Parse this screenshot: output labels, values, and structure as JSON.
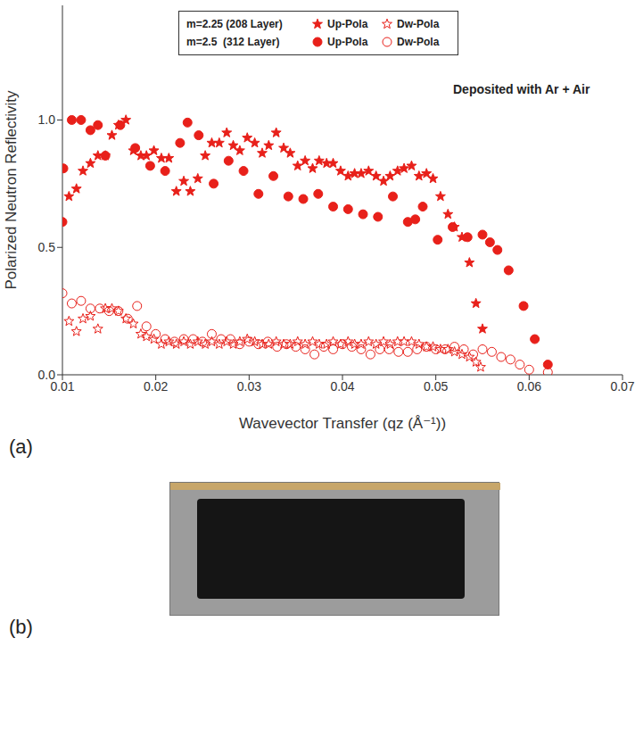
{
  "chart_data": {
    "type": "scatter",
    "panel_label": "(a)",
    "annotation": "Deposited with Ar + Air",
    "x_label": "Wavevector Transfer (qz (Å⁻¹))",
    "y_label": "Polarized Neutron Reflectivity",
    "xlim": [
      0.01,
      0.07
    ],
    "xticks": [
      0.01,
      0.02,
      0.03,
      0.04,
      0.05,
      0.06,
      0.07
    ],
    "ylim": [
      0,
      1.45
    ],
    "yticks": [
      {
        "value": 0,
        "label": "0.0"
      },
      {
        "value": 0.5,
        "label": "0.5"
      },
      {
        "value": 1,
        "label": "1.0"
      }
    ],
    "grid": false,
    "legend": "top",
    "series": [
      {
        "group": "m=2.25 (208 Layer)",
        "name": "Up-Pola",
        "color": "#e8201a",
        "marker": "filled_star",
        "x": [
          0.0107,
          0.0115,
          0.0122,
          0.013,
          0.0138,
          0.0146,
          0.0153,
          0.016,
          0.0168,
          0.0176,
          0.0184,
          0.019,
          0.0198,
          0.0206,
          0.0214,
          0.0222,
          0.023,
          0.0237,
          0.0245,
          0.0253,
          0.026,
          0.0268,
          0.0276,
          0.0283,
          0.029,
          0.0298,
          0.0306,
          0.0314,
          0.0321,
          0.0329,
          0.0337,
          0.0344,
          0.0352,
          0.036,
          0.0368,
          0.0375,
          0.0383,
          0.039,
          0.0398,
          0.0406,
          0.0413,
          0.042,
          0.0428,
          0.0436,
          0.0444,
          0.0451,
          0.0459,
          0.0466,
          0.0474,
          0.0482,
          0.049,
          0.0497,
          0.0505,
          0.0513,
          0.052,
          0.0528,
          0.0536,
          0.0543,
          0.055
        ],
        "values": [
          0.7,
          0.73,
          0.8,
          0.83,
          0.86,
          0.86,
          0.94,
          0.98,
          1.0,
          0.88,
          0.86,
          0.86,
          0.88,
          0.85,
          0.85,
          0.72,
          0.76,
          0.72,
          0.77,
          0.86,
          0.91,
          0.91,
          0.95,
          0.9,
          0.88,
          0.93,
          0.91,
          0.87,
          0.9,
          0.95,
          0.89,
          0.87,
          0.82,
          0.84,
          0.81,
          0.84,
          0.83,
          0.83,
          0.8,
          0.78,
          0.79,
          0.79,
          0.8,
          0.78,
          0.76,
          0.78,
          0.8,
          0.81,
          0.82,
          0.78,
          0.79,
          0.77,
          0.7,
          0.63,
          0.58,
          0.54,
          0.44,
          0.28,
          0.18
        ]
      },
      {
        "group": "m=2.25 (208 Layer)",
        "name": "Dw-Pola",
        "color": "#e8201a",
        "marker": "open_star",
        "x": [
          0.0107,
          0.0115,
          0.0122,
          0.013,
          0.0138,
          0.0146,
          0.0153,
          0.016,
          0.0168,
          0.0176,
          0.0184,
          0.019,
          0.0198,
          0.0206,
          0.0214,
          0.0222,
          0.023,
          0.0237,
          0.0245,
          0.0253,
          0.026,
          0.0268,
          0.0276,
          0.0283,
          0.029,
          0.0298,
          0.0306,
          0.0314,
          0.0321,
          0.0329,
          0.0337,
          0.0344,
          0.0352,
          0.036,
          0.0368,
          0.0375,
          0.0383,
          0.039,
          0.0398,
          0.0406,
          0.0413,
          0.042,
          0.0428,
          0.0436,
          0.0444,
          0.0451,
          0.0459,
          0.0466,
          0.0474,
          0.0482,
          0.049,
          0.0497,
          0.0505,
          0.0513,
          0.052,
          0.0528,
          0.0536,
          0.0543,
          0.0548
        ],
        "values": [
          0.21,
          0.17,
          0.22,
          0.23,
          0.18,
          0.26,
          0.26,
          0.25,
          0.22,
          0.2,
          0.16,
          0.15,
          0.14,
          0.12,
          0.13,
          0.12,
          0.13,
          0.12,
          0.13,
          0.12,
          0.13,
          0.12,
          0.13,
          0.12,
          0.13,
          0.14,
          0.13,
          0.12,
          0.12,
          0.13,
          0.12,
          0.12,
          0.13,
          0.12,
          0.13,
          0.12,
          0.12,
          0.13,
          0.12,
          0.13,
          0.12,
          0.12,
          0.13,
          0.12,
          0.13,
          0.12,
          0.13,
          0.13,
          0.13,
          0.12,
          0.11,
          0.11,
          0.1,
          0.1,
          0.09,
          0.08,
          0.07,
          0.05,
          0.03
        ]
      },
      {
        "group": "m=2.5  (312 Layer)",
        "name": "Up-Pola",
        "color": "#e8201a",
        "marker": "filled_circle",
        "x": [
          0.01,
          0.0101,
          0.011,
          0.012,
          0.013,
          0.0138,
          0.0146,
          0.0162,
          0.0178,
          0.0194,
          0.021,
          0.0226,
          0.0234,
          0.0246,
          0.0262,
          0.0278,
          0.0294,
          0.031,
          0.0326,
          0.0342,
          0.0358,
          0.0374,
          0.039,
          0.0406,
          0.0422,
          0.0438,
          0.0454,
          0.047,
          0.0478,
          0.0486,
          0.0502,
          0.0518,
          0.0534,
          0.055,
          0.0558,
          0.0566,
          0.0578,
          0.0594,
          0.0606,
          0.062
        ],
        "values": [
          0.6,
          0.81,
          1.0,
          1.0,
          0.96,
          0.98,
          0.86,
          0.98,
          0.89,
          0.82,
          0.8,
          0.91,
          0.99,
          0.94,
          0.75,
          0.84,
          0.8,
          0.71,
          0.78,
          0.7,
          0.69,
          0.71,
          0.66,
          0.65,
          0.63,
          0.62,
          0.7,
          0.6,
          0.61,
          0.66,
          0.53,
          0.58,
          0.54,
          0.55,
          0.52,
          0.49,
          0.41,
          0.27,
          0.14,
          0.04
        ]
      },
      {
        "group": "m=2.5  (312 Layer)",
        "name": "Dw-Pola",
        "color": "#e8201a",
        "marker": "open_circle",
        "x": [
          0.01,
          0.011,
          0.012,
          0.013,
          0.014,
          0.015,
          0.016,
          0.017,
          0.018,
          0.019,
          0.02,
          0.021,
          0.022,
          0.023,
          0.024,
          0.025,
          0.026,
          0.027,
          0.028,
          0.029,
          0.03,
          0.031,
          0.032,
          0.033,
          0.034,
          0.035,
          0.036,
          0.037,
          0.038,
          0.039,
          0.04,
          0.041,
          0.042,
          0.043,
          0.044,
          0.045,
          0.046,
          0.047,
          0.048,
          0.049,
          0.05,
          0.051,
          0.052,
          0.053,
          0.054,
          0.055,
          0.056,
          0.057,
          0.058,
          0.059,
          0.06,
          0.062
        ],
        "values": [
          0.32,
          0.28,
          0.29,
          0.26,
          0.26,
          0.25,
          0.25,
          0.22,
          0.27,
          0.19,
          0.16,
          0.14,
          0.13,
          0.14,
          0.14,
          0.13,
          0.16,
          0.14,
          0.14,
          0.12,
          0.13,
          0.12,
          0.13,
          0.11,
          0.12,
          0.11,
          0.1,
          0.08,
          0.11,
          0.1,
          0.12,
          0.11,
          0.1,
          0.08,
          0.1,
          0.1,
          0.09,
          0.09,
          0.1,
          0.11,
          0.1,
          0.1,
          0.11,
          0.1,
          0.08,
          0.1,
          0.09,
          0.07,
          0.06,
          0.04,
          0.02,
          0.01
        ]
      }
    ]
  },
  "photo": {
    "panel_label": "(b)"
  }
}
